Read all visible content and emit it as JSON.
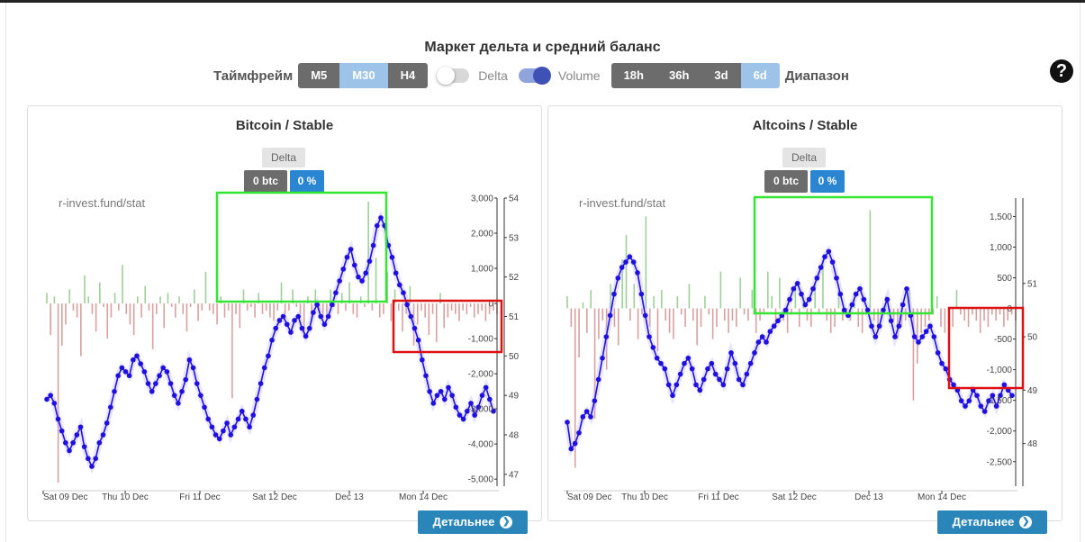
{
  "header": {
    "title": "Маркет дельта и средний баланс"
  },
  "controls": {
    "timeframe_label": "Таймфрейм",
    "timeframes": [
      {
        "label": "M5",
        "active": false
      },
      {
        "label": "M30",
        "active": true
      },
      {
        "label": "H4",
        "active": false
      }
    ],
    "delta_label": "Delta",
    "volume_label": "Volume",
    "delta_toggle_on": false,
    "volume_toggle_on": true,
    "ranges": [
      {
        "label": "18h",
        "active": false
      },
      {
        "label": "36h",
        "active": false
      },
      {
        "label": "3d",
        "active": false
      },
      {
        "label": "6d",
        "active": true
      }
    ],
    "range_label": "Диапазон"
  },
  "help": {
    "icon": "question-circle-icon",
    "glyph": "?"
  },
  "detail_button": {
    "label": "Детальнее",
    "icon": "chevron-right-circle-icon",
    "glyph": "❯"
  },
  "colors": {
    "balance_line": "#1f10e0",
    "positive_bar": "#9fcf98",
    "negative_bar": "#d9a0a0",
    "green_box": "#33e633",
    "red_box": "#dd1111",
    "active_button": "#9dc4e8",
    "pct_chip": "#2a86d1"
  },
  "panels": [
    {
      "title": "Bitcoin / Stable",
      "delta_chip": "Delta",
      "btc_chip": "0 btc",
      "pct_chip": "0 %",
      "watermark": "r-invest.fund/stat"
    },
    {
      "title": "Altcoins / Stable",
      "delta_chip": "Delta",
      "btc_chip": "0 btc",
      "pct_chip": "0 %",
      "watermark": "r-invest.fund/stat"
    }
  ],
  "chart_data": [
    {
      "type": "bar+line",
      "title": "Bitcoin / Stable",
      "x_ticks": [
        "Sat 09 Dec",
        "Thu 10 Dec",
        "Fri 11 Dec",
        "Sat 12 Dec",
        "Dec 13",
        "Mon 14 Dec"
      ],
      "left_axis_ticks": [
        "3,000",
        "2,000",
        "1,000",
        "0",
        "-1,000",
        "-2,000",
        "-3,000",
        "-4,000",
        "-5,000"
      ],
      "left_axis_values": [
        3000,
        2000,
        1000,
        0,
        -1000,
        -2000,
        -3000,
        -4000,
        -5000
      ],
      "right_axis_ticks": [
        "54",
        "53",
        "52",
        "51",
        "50",
        "49",
        "48",
        "47"
      ],
      "right_axis_values": [
        54,
        53,
        52,
        51,
        50,
        49,
        48,
        47
      ],
      "delta_range": [
        -5200,
        3000
      ],
      "balance_range": [
        46.7,
        54
      ],
      "balance_series": [
        48.9,
        49.0,
        48.8,
        48.4,
        48.1,
        47.8,
        47.6,
        47.8,
        48.0,
        48.2,
        47.7,
        47.4,
        47.2,
        47.4,
        47.8,
        48.0,
        48.3,
        48.7,
        49.1,
        49.5,
        49.7,
        49.6,
        49.5,
        49.9,
        50.0,
        49.8,
        49.6,
        49.3,
        49.1,
        49.3,
        49.5,
        49.7,
        49.6,
        49.3,
        49.0,
        48.8,
        49.1,
        49.4,
        49.9,
        49.7,
        49.3,
        49.0,
        48.7,
        48.4,
        48.2,
        48.0,
        47.9,
        48.1,
        48.3,
        48.0,
        48.2,
        48.4,
        48.6,
        48.4,
        48.2,
        48.5,
        48.9,
        49.3,
        49.7,
        50.0,
        50.4,
        50.7,
        50.9,
        51.0,
        50.8,
        50.6,
        50.9,
        51.0,
        50.7,
        50.5,
        50.7,
        51.1,
        51.3,
        51.0,
        50.8,
        51.0,
        51.3,
        51.6,
        51.9,
        52.2,
        52.5,
        52.7,
        52.3,
        52.0,
        51.9,
        52.1,
        52.4,
        52.8,
        53.3,
        53.5,
        53.3,
        52.8,
        52.5,
        52.1,
        51.8,
        51.6,
        51.3,
        51.0,
        50.7,
        50.4,
        49.9,
        49.5,
        49.1,
        48.8,
        49.0,
        49.1,
        48.9,
        49.2,
        49.0,
        48.7,
        48.5,
        48.4,
        48.6,
        48.8,
        48.5,
        48.7,
        49.0,
        49.2,
        48.9,
        48.6
      ],
      "delta_series": [
        300,
        -900,
        200,
        -5100,
        -1200,
        -600,
        400,
        -200,
        -400,
        -1500,
        800,
        200,
        -300,
        -800,
        600,
        -100,
        -1000,
        -400,
        300,
        -200,
        1100,
        -300,
        -600,
        -900,
        200,
        -400,
        500,
        -200,
        -1300,
        -300,
        200,
        -700,
        300,
        -100,
        -400,
        200,
        -300,
        -800,
        -100,
        400,
        -500,
        -200,
        900,
        -200,
        -300,
        -600,
        200,
        -400,
        -200,
        -2700,
        -300,
        -700,
        400,
        -200,
        -100,
        -400,
        300,
        -300,
        -200,
        -400,
        -500,
        -200,
        600,
        -300,
        -200,
        400,
        -100,
        -300,
        -900,
        200,
        -500,
        400,
        -200,
        -400,
        -300,
        400,
        -100,
        -300,
        300,
        -200,
        600,
        -300,
        -400,
        200,
        -100,
        2900,
        -200,
        1300,
        -400,
        -300,
        900,
        -500,
        400,
        -200,
        -800,
        -300,
        500,
        -1200,
        -600,
        -200,
        -400,
        -900,
        -300,
        -1100,
        300,
        -700,
        -400,
        -200,
        -300,
        -500,
        -200,
        -300,
        -100,
        -400,
        -300,
        -200,
        -500,
        -300,
        -200,
        -300
      ],
      "highlight_boxes": [
        "green",
        "red"
      ]
    },
    {
      "type": "bar+line",
      "title": "Altcoins / Stable",
      "x_ticks": [
        "Sat 09 Dec",
        "Thu 10 Dec",
        "Fri 11 Dec",
        "Sat 12 Dec",
        "Dec 13",
        "Mon 14 Dec"
      ],
      "left_axis_ticks": [
        "1,500",
        "1,000",
        "500",
        "0",
        "-500",
        "-1,000",
        "-1,500",
        "-2,000",
        "-2,500"
      ],
      "left_axis_values": [
        1500,
        1000,
        500,
        0,
        -500,
        -1000,
        -1500,
        -2000,
        -2500
      ],
      "right_axis_ticks": [
        "51",
        "50",
        "49",
        "48"
      ],
      "right_axis_values": [
        51,
        50,
        49,
        48
      ],
      "delta_range": [
        -2900,
        1800
      ],
      "balance_range": [
        47.2,
        52.6
      ],
      "balance_series": [
        48.4,
        47.9,
        48.0,
        48.2,
        48.5,
        48.6,
        48.5,
        48.8,
        49.2,
        49.6,
        50.0,
        50.4,
        50.8,
        51.1,
        51.3,
        51.4,
        51.5,
        51.4,
        51.2,
        50.8,
        50.4,
        50.0,
        49.8,
        49.6,
        49.5,
        49.4,
        49.1,
        48.9,
        49.1,
        49.3,
        49.5,
        49.6,
        49.4,
        49.1,
        49.0,
        49.2,
        49.4,
        49.5,
        49.3,
        49.2,
        49.1,
        49.4,
        49.7,
        49.5,
        49.2,
        49.1,
        49.3,
        49.5,
        49.7,
        49.9,
        50.0,
        49.9,
        50.1,
        50.2,
        50.3,
        50.4,
        50.5,
        50.7,
        50.9,
        51.0,
        50.8,
        50.6,
        50.7,
        50.9,
        51.1,
        51.3,
        51.5,
        51.6,
        51.4,
        51.1,
        50.8,
        50.5,
        50.4,
        50.6,
        50.8,
        50.9,
        50.7,
        50.5,
        50.2,
        50.0,
        50.2,
        50.5,
        50.7,
        50.3,
        50.0,
        50.2,
        50.6,
        50.9,
        50.4,
        50.0,
        49.9,
        50.0,
        50.1,
        50.2,
        50.0,
        49.7,
        49.5,
        49.4,
        49.2,
        49.1,
        49.0,
        48.8,
        48.7,
        48.8,
        49.0,
        48.9,
        48.7,
        48.6,
        48.8,
        48.9,
        48.7,
        48.9,
        49.1,
        49.0,
        48.9
      ],
      "delta_series": [
        200,
        -300,
        -2600,
        -800,
        100,
        -400,
        300,
        -1800,
        -500,
        -200,
        -1000,
        400,
        -300,
        -600,
        800,
        1200,
        -200,
        400,
        -500,
        -100,
        1500,
        -300,
        200,
        -700,
        300,
        -200,
        -400,
        -500,
        200,
        -100,
        -300,
        400,
        -200,
        -600,
        -300,
        200,
        -100,
        -500,
        -300,
        600,
        -200,
        -400,
        -200,
        -300,
        500,
        -100,
        -200,
        300,
        -400,
        -200,
        -100,
        600,
        200,
        -300,
        500,
        -200,
        -400,
        -100,
        300,
        -300,
        200,
        -200,
        -300,
        400,
        -100,
        800,
        -200,
        -400,
        -300,
        300,
        -200,
        -100,
        -200,
        200,
        -300,
        -400,
        -100,
        1600,
        -200,
        -300,
        -100,
        200,
        -100,
        -200,
        -500,
        -300,
        -200,
        300,
        -1500,
        -900,
        -400,
        -300,
        -200,
        -100,
        200,
        -300,
        -400,
        -200,
        -300,
        300,
        -100,
        -200,
        -300,
        -100,
        -200,
        -400,
        -200,
        -300,
        -100,
        -200,
        -100,
        -300,
        -200,
        -100,
        -200
      ],
      "highlight_boxes": [
        "green",
        "red"
      ]
    }
  ]
}
